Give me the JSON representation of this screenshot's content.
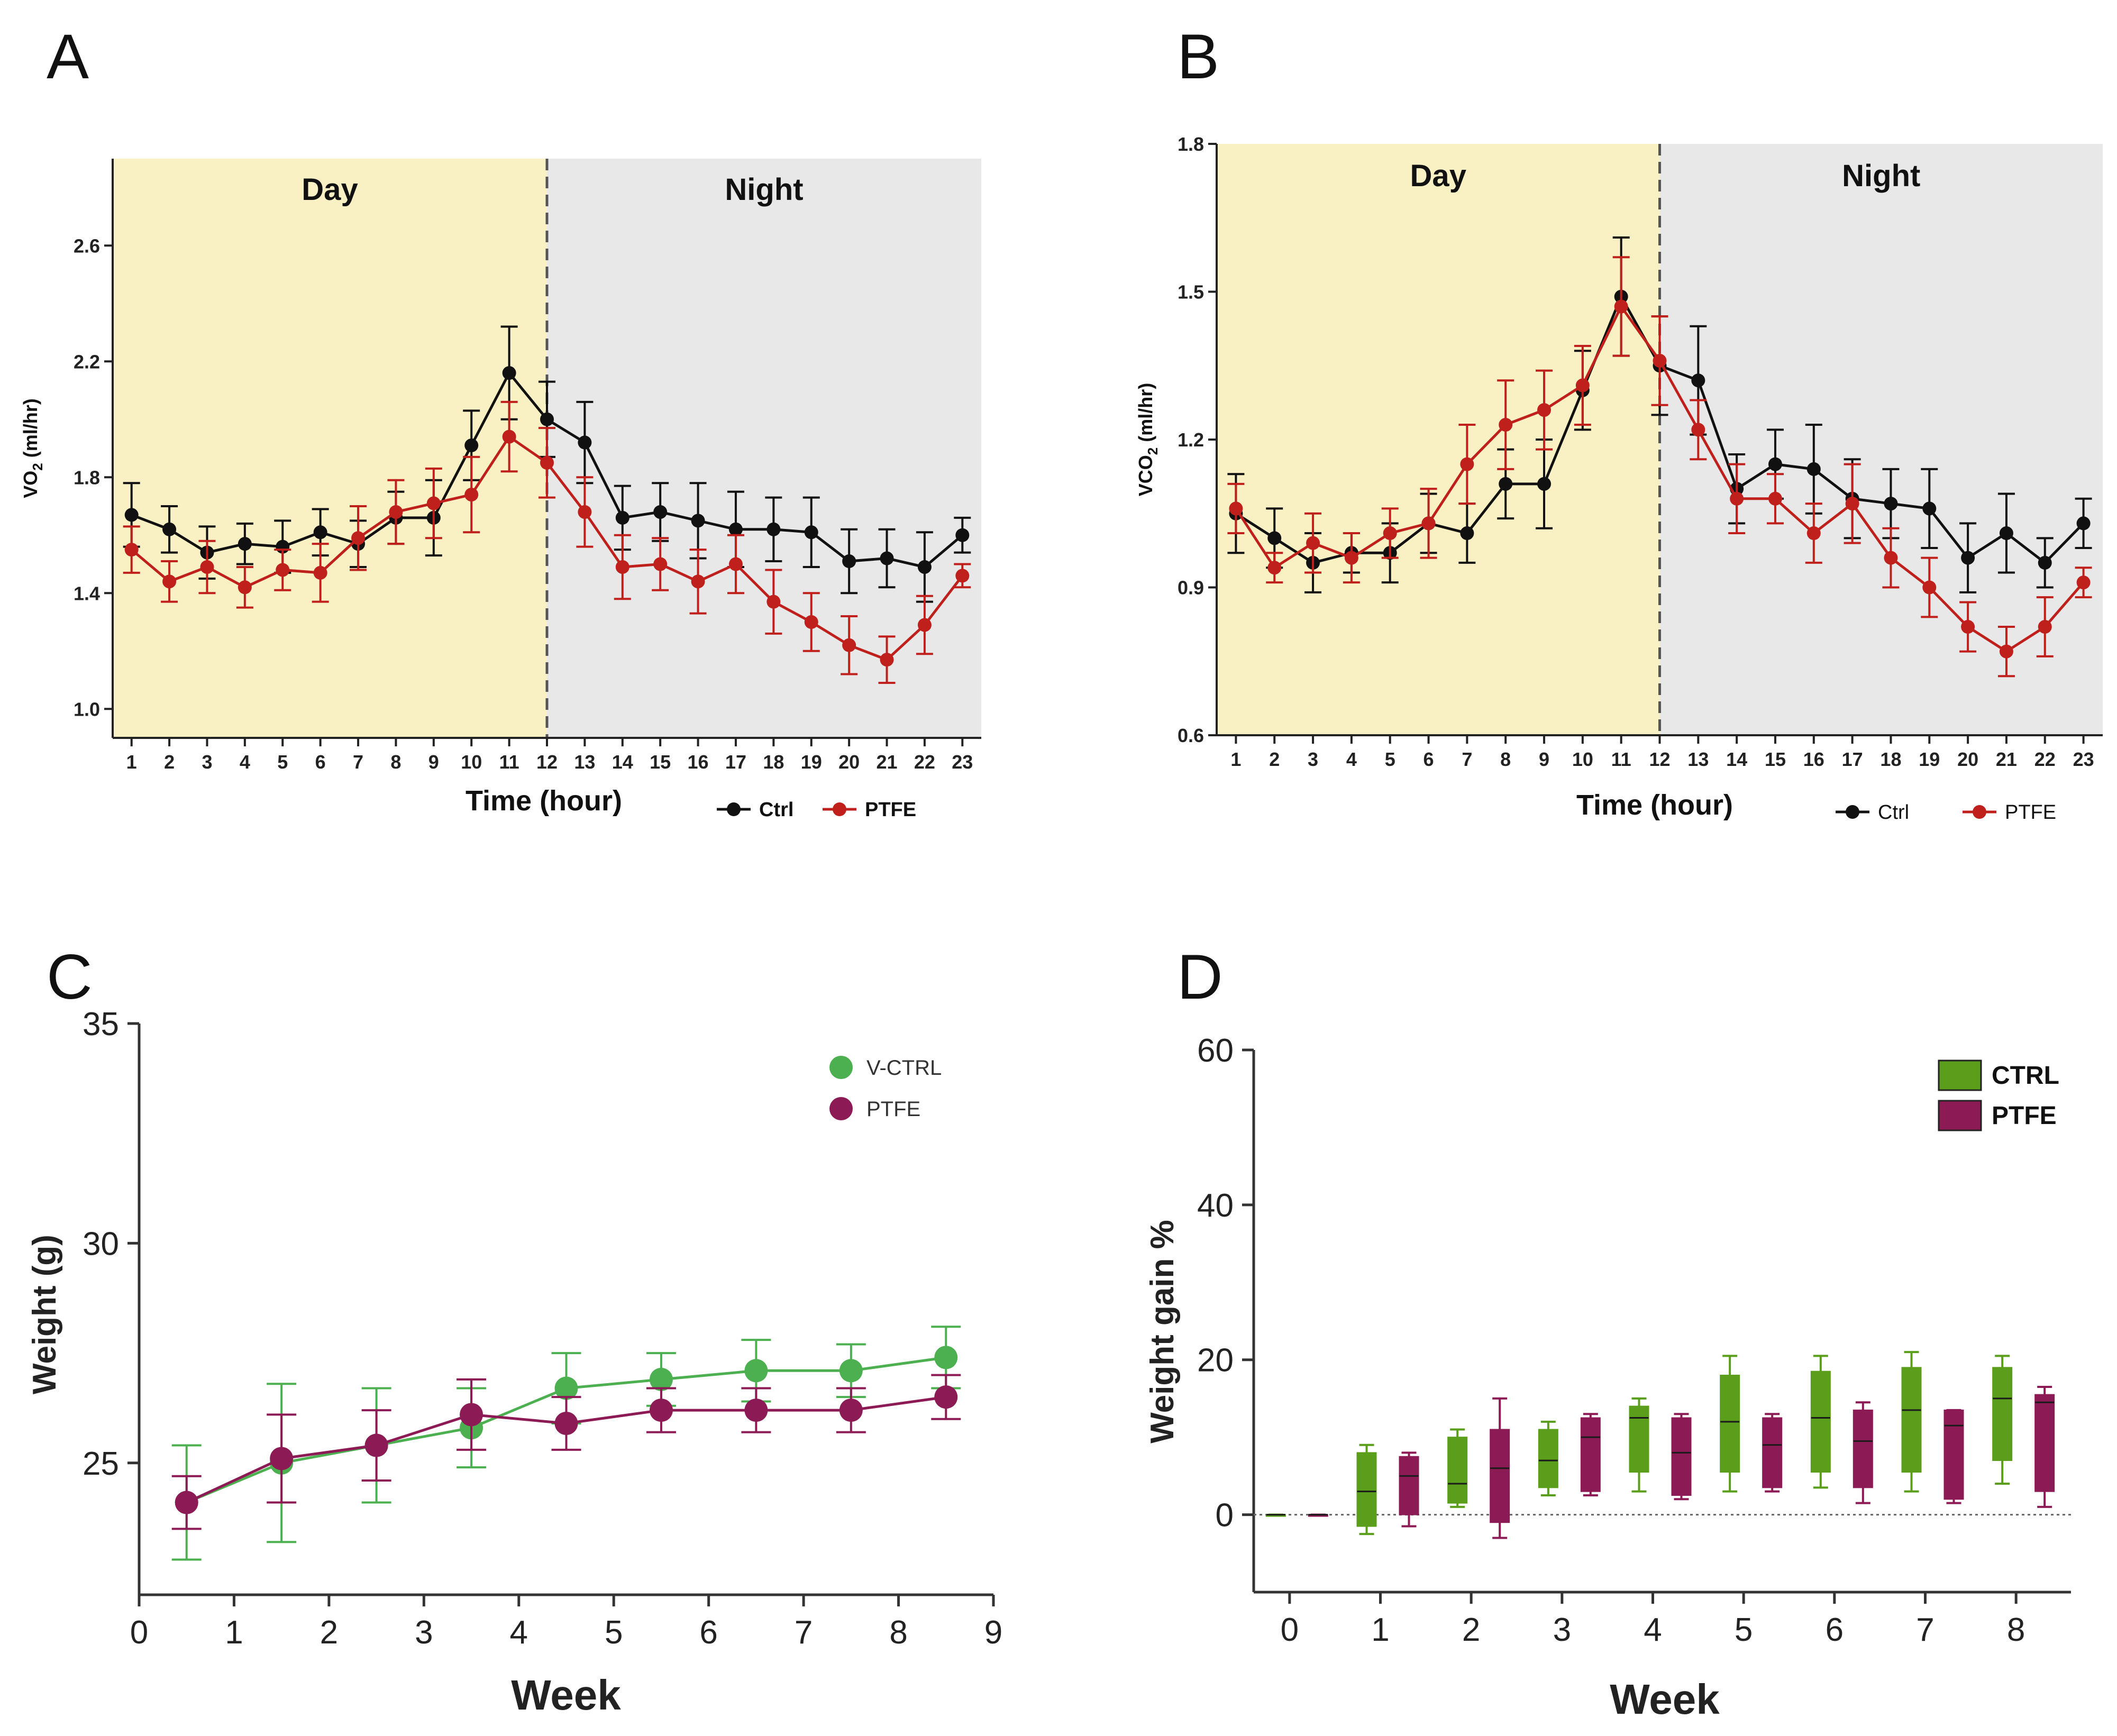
{
  "panels": {
    "a": "A",
    "b": "B",
    "c": "C",
    "d": "D"
  },
  "colors": {
    "ctrl": "#111111",
    "ptfe_red": "#c0201c",
    "ptfe_maroon": "#8c1a55",
    "vctrl_green": "#4cb050",
    "ctrl_box_green": "#5a9e1c",
    "day_fill": "#f9f0c3",
    "night_fill": "#e8e8e8"
  },
  "chart_data": [
    {
      "id": "A",
      "type": "line",
      "title": "",
      "xlabel": "Time (hour)",
      "ylabel": "VO",
      "ylabel_sub": "2",
      "ylabel_unit": " (ml/hr)",
      "x": [
        1,
        2,
        3,
        4,
        5,
        6,
        7,
        8,
        9,
        10,
        11,
        12,
        13,
        14,
        15,
        16,
        17,
        18,
        19,
        20,
        21,
        22,
        23
      ],
      "xlim": [
        0.5,
        23.5
      ],
      "ylim": [
        0.9,
        2.9
      ],
      "yticks": [
        1.0,
        1.4,
        1.8,
        2.2,
        2.6
      ],
      "ytick_labels": [
        "1.0",
        "1.4",
        "1.8",
        "2.2",
        "2.6"
      ],
      "divider": 12,
      "regions": [
        "Day",
        "Night"
      ],
      "legend": [
        "Ctrl",
        "PTFE"
      ],
      "series": [
        {
          "name": "Ctrl",
          "values": [
            1.67,
            1.62,
            1.54,
            1.57,
            1.56,
            1.61,
            1.57,
            1.66,
            1.66,
            1.91,
            2.16,
            2.0,
            1.92,
            1.66,
            1.68,
            1.65,
            1.62,
            1.62,
            1.61,
            1.51,
            1.52,
            1.49,
            1.6
          ],
          "errors": [
            0.11,
            0.08,
            0.09,
            0.07,
            0.09,
            0.08,
            0.08,
            0.09,
            0.13,
            0.12,
            0.16,
            0.13,
            0.14,
            0.11,
            0.1,
            0.13,
            0.13,
            0.11,
            0.12,
            0.11,
            0.1,
            0.12,
            0.06
          ]
        },
        {
          "name": "PTFE",
          "values": [
            1.55,
            1.44,
            1.49,
            1.42,
            1.48,
            1.47,
            1.59,
            1.68,
            1.71,
            1.74,
            1.94,
            1.85,
            1.68,
            1.49,
            1.5,
            1.44,
            1.5,
            1.37,
            1.3,
            1.22,
            1.17,
            1.29,
            1.46
          ],
          "errors": [
            0.08,
            0.07,
            0.09,
            0.07,
            0.07,
            0.1,
            0.11,
            0.11,
            0.12,
            0.13,
            0.12,
            0.12,
            0.12,
            0.11,
            0.09,
            0.11,
            0.1,
            0.11,
            0.1,
            0.1,
            0.08,
            0.1,
            0.04
          ]
        }
      ]
    },
    {
      "id": "B",
      "type": "line",
      "title": "",
      "xlabel": "Time (hour)",
      "ylabel": "VCO",
      "ylabel_sub": "2",
      "ylabel_unit": " (ml/hr)",
      "x": [
        1,
        2,
        3,
        4,
        5,
        6,
        7,
        8,
        9,
        10,
        11,
        12,
        13,
        14,
        15,
        16,
        17,
        18,
        19,
        20,
        21,
        22,
        23
      ],
      "xlim": [
        0.5,
        23.5
      ],
      "ylim": [
        0.6,
        1.8
      ],
      "yticks": [
        0.6,
        0.9,
        1.2,
        1.5,
        1.8
      ],
      "ytick_labels": [
        "0.6",
        "0.9",
        "1.2",
        "1.5",
        "1.8"
      ],
      "divider": 12,
      "regions": [
        "Day",
        "Night"
      ],
      "legend": [
        "Ctrl",
        "PTFE"
      ],
      "series": [
        {
          "name": "Ctrl",
          "values": [
            1.05,
            1.0,
            0.95,
            0.97,
            0.97,
            1.03,
            1.01,
            1.11,
            1.11,
            1.3,
            1.49,
            1.35,
            1.32,
            1.1,
            1.15,
            1.14,
            1.08,
            1.07,
            1.06,
            0.96,
            1.01,
            0.95,
            1.03
          ],
          "errors": [
            0.08,
            0.06,
            0.06,
            0.04,
            0.06,
            0.06,
            0.06,
            0.07,
            0.09,
            0.08,
            0.12,
            0.1,
            0.11,
            0.07,
            0.07,
            0.09,
            0.08,
            0.07,
            0.08,
            0.07,
            0.08,
            0.05,
            0.05
          ]
        },
        {
          "name": "PTFE",
          "values": [
            1.06,
            0.94,
            0.99,
            0.96,
            1.01,
            1.03,
            1.15,
            1.23,
            1.26,
            1.31,
            1.47,
            1.36,
            1.22,
            1.08,
            1.08,
            1.01,
            1.07,
            0.96,
            0.9,
            0.82,
            0.77,
            0.82,
            0.91
          ],
          "errors": [
            0.05,
            0.03,
            0.06,
            0.05,
            0.05,
            0.07,
            0.08,
            0.09,
            0.08,
            0.08,
            0.1,
            0.09,
            0.06,
            0.07,
            0.05,
            0.06,
            0.08,
            0.06,
            0.06,
            0.05,
            0.05,
            0.06,
            0.03
          ]
        }
      ]
    },
    {
      "id": "C",
      "type": "line",
      "title": "",
      "xlabel": "Week",
      "ylabel": "Weight (g)",
      "xlim": [
        0,
        9
      ],
      "ylim": [
        22,
        35
      ],
      "xticks": [
        0,
        1,
        2,
        3,
        4,
        5,
        6,
        7,
        8,
        9
      ],
      "xtick_labels": [
        "0",
        "1",
        "2",
        "3",
        "4",
        "5",
        "6",
        "7",
        "8",
        "9"
      ],
      "yticks": [
        25,
        30,
        35
      ],
      "ytick_labels": [
        "25",
        "30",
        "35"
      ],
      "legend": [
        "V-CTRL",
        "PTFE"
      ],
      "x": [
        0.5,
        1.5,
        2.5,
        3.5,
        4.5,
        5.5,
        6.5,
        7.5,
        8.5
      ],
      "series": [
        {
          "name": "V-CTRL",
          "values": [
            24.1,
            25.0,
            25.4,
            25.8,
            26.7,
            26.9,
            27.1,
            27.1,
            27.4
          ],
          "errors": [
            1.3,
            1.8,
            1.3,
            0.9,
            0.8,
            0.6,
            0.7,
            0.6,
            0.7
          ]
        },
        {
          "name": "PTFE",
          "values": [
            24.1,
            25.1,
            25.4,
            26.1,
            25.9,
            26.2,
            26.2,
            26.2,
            26.5
          ],
          "errors": [
            0.6,
            1.0,
            0.8,
            0.8,
            0.6,
            0.5,
            0.5,
            0.5,
            0.5
          ]
        }
      ]
    },
    {
      "id": "D",
      "type": "box",
      "title": "",
      "xlabel": "Week",
      "ylabel": "Weight gain %",
      "ylim": [
        -10,
        60
      ],
      "yticks": [
        0,
        20,
        40,
        60
      ],
      "ytick_labels": [
        "0",
        "20",
        "40",
        "60"
      ],
      "categories": [
        "0",
        "1",
        "2",
        "3",
        "4",
        "5",
        "6",
        "7",
        "8"
      ],
      "legend": [
        "CTRL",
        "PTFE"
      ],
      "series": [
        {
          "name": "CTRL",
          "boxes": [
            {
              "min": 0,
              "q1": 0,
              "median": 0,
              "q3": 0,
              "max": 0
            },
            {
              "min": -2.5,
              "q1": -1.5,
              "median": 3,
              "q3": 8,
              "max": 9
            },
            {
              "min": 1,
              "q1": 1.5,
              "median": 4,
              "q3": 10,
              "max": 11
            },
            {
              "min": 2.5,
              "q1": 3.5,
              "median": 7,
              "q3": 11,
              "max": 12
            },
            {
              "min": 3,
              "q1": 5.5,
              "median": 12.5,
              "q3": 14,
              "max": 15
            },
            {
              "min": 3,
              "q1": 5.5,
              "median": 12,
              "q3": 18,
              "max": 20.5
            },
            {
              "min": 3.5,
              "q1": 5.5,
              "median": 12.5,
              "q3": 18.5,
              "max": 20.5
            },
            {
              "min": 3,
              "q1": 5.5,
              "median": 13.5,
              "q3": 19,
              "max": 21
            },
            {
              "min": 4,
              "q1": 7,
              "median": 15,
              "q3": 19,
              "max": 20.5
            }
          ]
        },
        {
          "name": "PTFE",
          "boxes": [
            {
              "min": 0,
              "q1": 0,
              "median": 0,
              "q3": 0,
              "max": 0
            },
            {
              "min": -1.5,
              "q1": 0,
              "median": 5,
              "q3": 7.5,
              "max": 8
            },
            {
              "min": -3,
              "q1": -1,
              "median": 6,
              "q3": 11,
              "max": 15
            },
            {
              "min": 2.5,
              "q1": 3,
              "median": 10,
              "q3": 12.5,
              "max": 13
            },
            {
              "min": 2,
              "q1": 2.5,
              "median": 8,
              "q3": 12.5,
              "max": 13
            },
            {
              "min": 3,
              "q1": 3.5,
              "median": 9,
              "q3": 12.5,
              "max": 13
            },
            {
              "min": 1.5,
              "q1": 3.5,
              "median": 9.5,
              "q3": 13.5,
              "max": 14.5
            },
            {
              "min": 1.5,
              "q1": 2,
              "median": 11.5,
              "q3": 13.5,
              "max": 13.5
            },
            {
              "min": 1,
              "q1": 3,
              "median": 14.5,
              "q3": 15.5,
              "max": 16.5
            }
          ]
        }
      ]
    }
  ]
}
